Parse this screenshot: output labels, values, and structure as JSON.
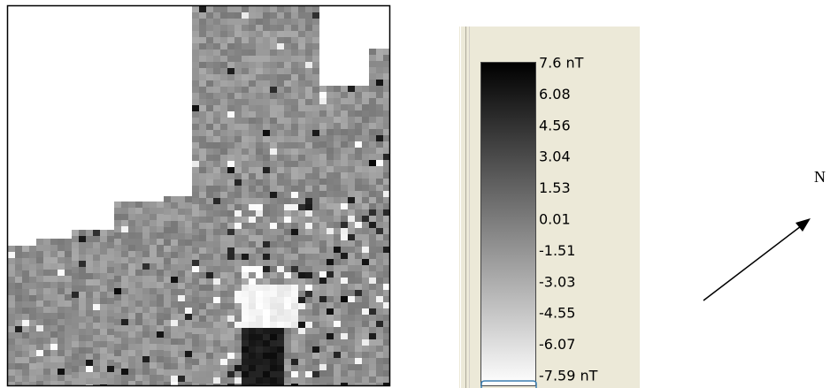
{
  "legend": {
    "labels": [
      "7.6 nT",
      "6.08",
      "4.56",
      "3.04",
      "1.53",
      "0.01",
      "-1.51",
      "-3.03",
      "-4.55",
      "-6.07",
      "-7.59 nT"
    ]
  },
  "north_arrow": {
    "label": "N"
  }
}
